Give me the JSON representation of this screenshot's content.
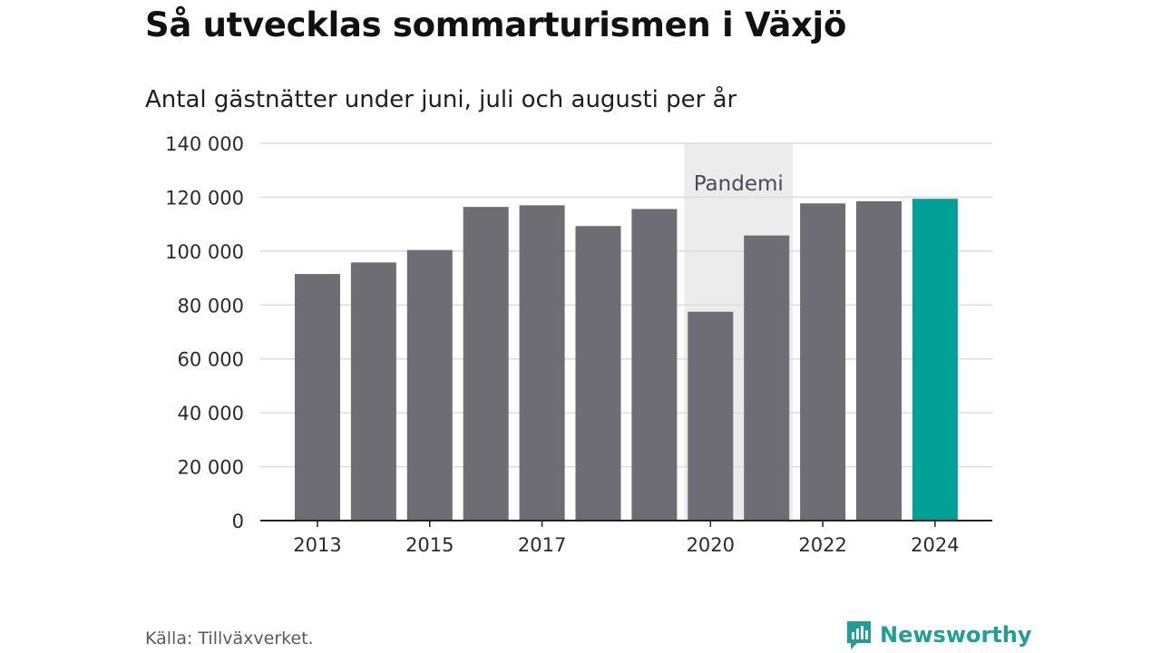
{
  "title": "Så utvecklas sommarturismen i Växjö",
  "subtitle": "Antal gästnätter under juni, juli och augusti per år",
  "source": "Källa: Tillväxverket.",
  "brand": {
    "name": "Newsworthy",
    "icon": "newsworthy-logo-icon",
    "color": "#1f9f95"
  },
  "colors": {
    "bar": "#6e6d73",
    "highlight": "#00a097",
    "band": "#ececec",
    "grid": "#dcdcdc",
    "axis": "#222222"
  },
  "chart_data": {
    "type": "bar",
    "categories": [
      "2013",
      "2014",
      "2015",
      "2016",
      "2017",
      "2018",
      "2019",
      "2020",
      "2021",
      "2022",
      "2023",
      "2024"
    ],
    "values": [
      91500,
      95800,
      100400,
      116400,
      117000,
      109300,
      115600,
      77500,
      105800,
      117700,
      118500,
      119400
    ],
    "highlight_category": "2024",
    "x_tick_labels": [
      "2013",
      "2015",
      "2017",
      "2020",
      "2022",
      "2024"
    ],
    "y_ticks": [
      0,
      20000,
      40000,
      60000,
      80000,
      100000,
      120000,
      140000
    ],
    "y_tick_labels": [
      "0",
      "20 000",
      "40 000",
      "60 000",
      "80 000",
      "100 000",
      "120 000",
      "140 000"
    ],
    "ylim": [
      0,
      140000
    ],
    "grid": true,
    "xlabel": "",
    "ylabel": "",
    "annotations": [
      {
        "text": "Pandemi",
        "from": "2020",
        "to": "2021"
      }
    ]
  }
}
